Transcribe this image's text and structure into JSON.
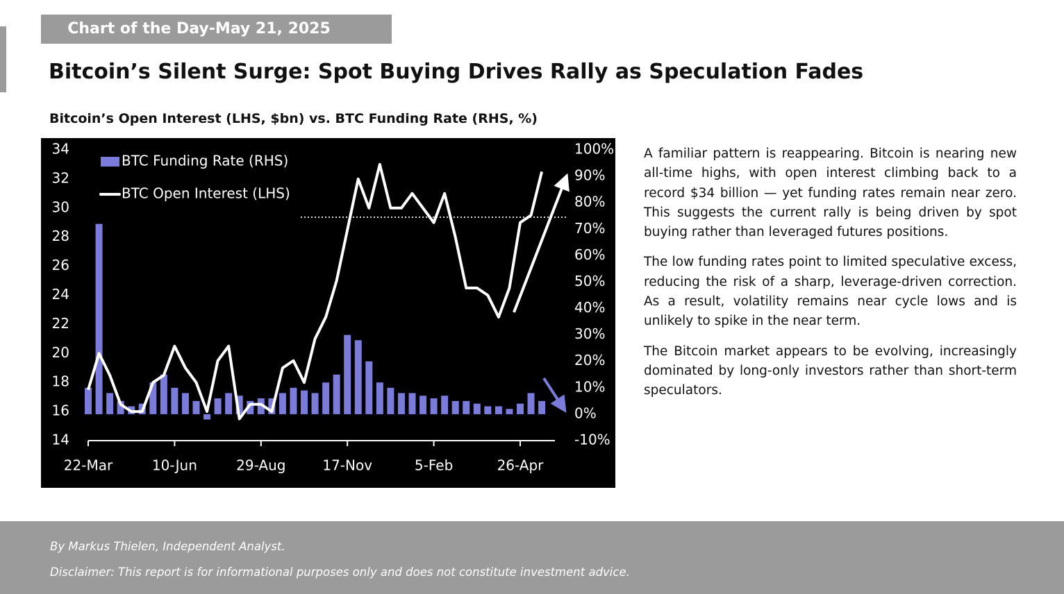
{
  "header": {
    "tag": "Chart of the Day-May 21, 2025",
    "title": "Bitcoin’s Silent Surge: Spot Buying Drives Rally as Speculation Fades"
  },
  "chart_data": {
    "type": "bar-line",
    "title": "Bitcoin’s Open Interest (LHS, $bn) vs. BTC Funding Rate (RHS, %)",
    "categories": [
      "22-Mar",
      null,
      null,
      null,
      null,
      null,
      null,
      null,
      "10-Jun",
      null,
      null,
      null,
      null,
      null,
      null,
      null,
      "29-Aug",
      null,
      null,
      null,
      null,
      null,
      null,
      null,
      "17-Nov",
      null,
      null,
      null,
      null,
      null,
      null,
      null,
      "5-Feb",
      null,
      null,
      null,
      null,
      null,
      null,
      null,
      "26-Apr",
      null,
      null
    ],
    "series": [
      {
        "name": "BTC Funding Rate (RHS)",
        "type": "bar",
        "axis": "y2",
        "color": "#7b7bdc",
        "values": [
          10,
          72,
          8,
          5,
          3,
          4,
          12,
          15,
          10,
          8,
          5,
          -2,
          6,
          8,
          7,
          5,
          6,
          6,
          8,
          10,
          9,
          8,
          12,
          15,
          30,
          28,
          20,
          12,
          10,
          8,
          8,
          7,
          6,
          7,
          5,
          5,
          4,
          3,
          3,
          2,
          4,
          8,
          5
        ]
      },
      {
        "name": "BTC Open Interest (LHS)",
        "type": "line",
        "axis": "y",
        "color": "#ffffff",
        "values": [
          17.5,
          20,
          18.5,
          16.5,
          16,
          16,
          18,
          18.5,
          20.5,
          19,
          18,
          16,
          19.5,
          20.5,
          15.5,
          16.5,
          16.5,
          16,
          19,
          19.5,
          18,
          21,
          22.5,
          25,
          28.5,
          32,
          30,
          33,
          30,
          30,
          31,
          30,
          29,
          31,
          28,
          24.5,
          24.5,
          24,
          22.5,
          24.5,
          29,
          29.5,
          32.5
        ]
      }
    ],
    "ylim": [
      14,
      34
    ],
    "yticks": [
      14,
      16,
      18,
      20,
      22,
      24,
      26,
      28,
      30,
      32,
      34
    ],
    "y2lim": [
      -10,
      100
    ],
    "y2ticks": [
      {
        "value": -10,
        "label": "-10%"
      },
      {
        "value": 0,
        "label": "0%"
      },
      {
        "value": 10,
        "label": "10%"
      },
      {
        "value": 20,
        "label": "20%"
      },
      {
        "value": 30,
        "label": "30%"
      },
      {
        "value": 40,
        "label": "40%"
      },
      {
        "value": 50,
        "label": "50%"
      },
      {
        "value": 60,
        "label": "60%"
      },
      {
        "value": 70,
        "label": "70%"
      },
      {
        "value": 80,
        "label": "80%"
      },
      {
        "value": 90,
        "label": "90%"
      },
      {
        "value": 100,
        "label": "100%"
      }
    ],
    "grid": false,
    "legend": "top-left"
  },
  "text": {
    "paragraphs": [
      "A familiar pattern is reappearing. Bitcoin is nearing new all-time highs, with open interest climbing back to a record $34 billion — yet funding rates remain near zero. This suggests the current rally is being driven by spot buying rather than leveraged futures positions.",
      "The low funding rates point to limited speculative excess, reducing the risk of a sharp, leverage-driven correction. As a result, volatility remains near cycle lows and is unlikely to spike in the near term.",
      "The Bitcoin market appears to be evolving, increasingly dominated by long-only investors rather than short-term speculators."
    ]
  },
  "footer": {
    "author": "By Markus Thielen, Independent Analyst.",
    "disclaimer": "Disclaimer: This report is for informational purposes only and does not constitute investment advice."
  }
}
